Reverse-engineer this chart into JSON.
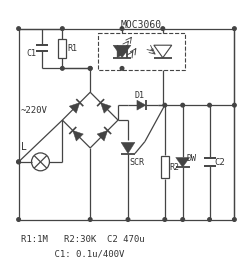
{
  "background_color": "#ffffff",
  "line_color": "#444444",
  "text_color": "#333333",
  "annotations": {
    "moc": "MOC3060",
    "r1": "R1",
    "c1": "C1",
    "d1": "D1",
    "dw": "DW",
    "r2": "R2",
    "c2": "C2",
    "scr": "SCR",
    "l": "L",
    "v220": "~220V",
    "line1": "R1:1M   R2:30K  C2 470u",
    "line2": "    C1: 0.1u/400V"
  }
}
